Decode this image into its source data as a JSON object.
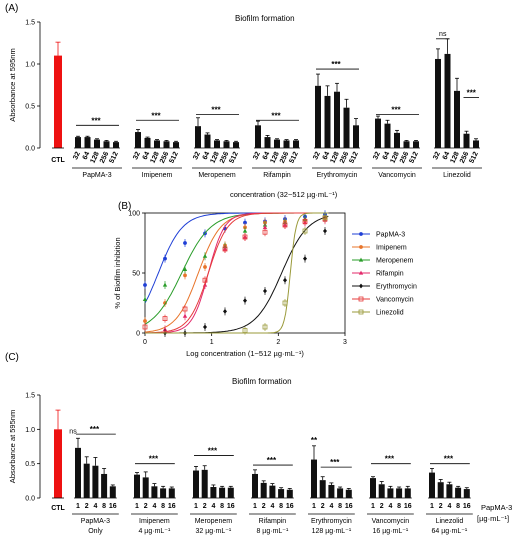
{
  "panels": {
    "a": {
      "label": "(A)",
      "title": "Biofilm formation",
      "xaxis_title": "concentration (32~512 µg·mL⁻¹)"
    },
    "b": {
      "label": "(B)"
    },
    "c": {
      "label": "(C)",
      "title": "Biofilm formation",
      "right_label_1": "PapMA-3",
      "right_label_2": "[µg·mL⁻¹]"
    }
  },
  "colors": {
    "ctl": "#ee1111",
    "bar": "#111111"
  },
  "chart_data": [
    {
      "id": "A",
      "type": "bar",
      "title": "Biofilm formation",
      "ylabel": "Absorbance at 595nm",
      "xlabel": "concentration (32~512 µg·mL⁻¹)",
      "ylim": [
        0,
        1.5
      ],
      "yticks": [
        "0.0",
        "0.5",
        "1.0",
        "1.5"
      ],
      "control": {
        "label": "CTL",
        "value": 1.1,
        "err": 0.16
      },
      "groups": [
        {
          "name": "PapMA-3",
          "ticks": [
            "32",
            "64",
            "128",
            "256",
            "512"
          ],
          "values": [
            0.13,
            0.13,
            0.1,
            0.08,
            0.07
          ],
          "errs": [
            0.01,
            0.01,
            0.01,
            0.01,
            0.01
          ],
          "sig": "***",
          "sig_y": 0.27
        },
        {
          "name": "Imipenem",
          "ticks": [
            "32",
            "64",
            "128",
            "256",
            "512"
          ],
          "values": [
            0.19,
            0.12,
            0.09,
            0.08,
            0.07
          ],
          "errs": [
            0.03,
            0.01,
            0.01,
            0.01,
            0.01
          ],
          "sig": "***",
          "sig_y": 0.33
        },
        {
          "name": "Meropenem",
          "ticks": [
            "32",
            "64",
            "128",
            "256",
            "512"
          ],
          "values": [
            0.26,
            0.16,
            0.09,
            0.08,
            0.07
          ],
          "errs": [
            0.1,
            0.02,
            0.01,
            0.01,
            0.01
          ],
          "sig": "***",
          "sig_y": 0.4
        },
        {
          "name": "Rifampin",
          "ticks": [
            "32",
            "64",
            "128",
            "256",
            "512"
          ],
          "values": [
            0.27,
            0.13,
            0.1,
            0.09,
            0.09
          ],
          "errs": [
            0.05,
            0.02,
            0.01,
            0.01,
            0.01
          ],
          "sig": "***",
          "sig_y": 0.33
        },
        {
          "name": "Erythromycin",
          "ticks": [
            "32",
            "64",
            "128",
            "256",
            "512"
          ],
          "values": [
            0.74,
            0.62,
            0.67,
            0.48,
            0.27
          ],
          "errs": [
            0.14,
            0.12,
            0.1,
            0.1,
            0.08
          ],
          "sig": "***",
          "sig_y": 0.94
        },
        {
          "name": "Vancomycin",
          "ticks": [
            "32",
            "64",
            "128",
            "256",
            "512"
          ],
          "values": [
            0.35,
            0.29,
            0.18,
            0.08,
            0.08
          ],
          "errs": [
            0.03,
            0.04,
            0.03,
            0.01,
            0.01
          ],
          "sig": "***",
          "sig_y": 0.4
        },
        {
          "name": "Linezolid",
          "ticks": [
            "32",
            "64",
            "128",
            "256",
            "512"
          ],
          "values": [
            1.06,
            1.12,
            0.68,
            0.17,
            0.09
          ],
          "errs": [
            0.12,
            0.18,
            0.15,
            0.03,
            0.02
          ],
          "sig": "ns",
          "sig_y": 1.3,
          "sig2": "***",
          "sig2_y": 0.6
        }
      ]
    },
    {
      "id": "B",
      "type": "scatter",
      "ylabel": "% of Biofilm inhibition",
      "xlabel": "Log concentration (1~512 µg·mL⁻¹)",
      "xlim": [
        0,
        3
      ],
      "ylim": [
        0,
        100
      ],
      "xticks": [
        "0",
        "1",
        "2",
        "3"
      ],
      "yticks": [
        "0",
        "50",
        "100"
      ],
      "series": [
        {
          "name": "PapMA-3",
          "color": "#1f3fd6",
          "marker": "circle",
          "x": [
            0,
            0.3,
            0.6,
            0.9,
            1.2,
            1.5,
            1.8,
            2.1,
            2.4,
            2.7
          ],
          "y": [
            40,
            62,
            75,
            83,
            87,
            92,
            93,
            95,
            97,
            99
          ],
          "curve": {
            "ec50": 0.2,
            "hill": 1.2
          }
        },
        {
          "name": "Imipenem",
          "color": "#e8742a",
          "marker": "circle",
          "x": [
            0,
            0.3,
            0.6,
            0.9,
            1.2,
            1.5,
            1.8,
            2.1,
            2.4,
            2.7
          ],
          "y": [
            10,
            25,
            48,
            55,
            73,
            88,
            92,
            93,
            94,
            96
          ],
          "curve": {
            "ec50": 0.8,
            "hill": 1.3
          }
        },
        {
          "name": "Meropenem",
          "color": "#2a9d2a",
          "marker": "triangle",
          "x": [
            0,
            0.3,
            0.6,
            0.9,
            1.2,
            1.5,
            1.8,
            2.1,
            2.4,
            2.7
          ],
          "y": [
            28,
            40,
            53,
            64,
            72,
            85,
            90,
            92,
            95,
            97
          ],
          "curve": {
            "ec50": 0.55,
            "hill": 1.0
          }
        },
        {
          "name": "Rifampin",
          "color": "#e3286a",
          "marker": "triangle",
          "x": [
            0.3,
            0.6,
            0.9,
            1.2,
            1.5,
            1.8,
            2.1,
            2.4,
            2.7
          ],
          "y": [
            3,
            14,
            40,
            70,
            80,
            88,
            90,
            92,
            94
          ],
          "curve": {
            "ec50": 0.95,
            "hill": 1.8
          }
        },
        {
          "name": "Erythromycin",
          "color": "#111111",
          "marker": "diamond",
          "x": [
            0.3,
            0.6,
            0.9,
            1.2,
            1.5,
            1.8,
            2.1,
            2.4,
            2.7
          ],
          "y": [
            0,
            0,
            5,
            18,
            27,
            35,
            44,
            62,
            85
          ],
          "curve": {
            "ec50": 2.05,
            "hill": 1.1
          }
        },
        {
          "name": "Vancomycin",
          "color": "#e63b3b",
          "marker": "square-open",
          "x": [
            0,
            0.3,
            0.6,
            0.9,
            1.2,
            1.5,
            1.8,
            2.1,
            2.4,
            2.7
          ],
          "y": [
            5,
            12,
            20,
            44,
            70,
            80,
            84,
            90,
            93,
            95
          ],
          "curve": {
            "ec50": 0.95,
            "hill": 1.5
          }
        },
        {
          "name": "Linezolid",
          "color": "#9a9a3a",
          "marker": "square-open",
          "x": [
            1.5,
            1.8,
            2.1,
            2.4,
            2.7
          ],
          "y": [
            2,
            5,
            25,
            85,
            96
          ],
          "curve": {
            "ec50": 2.18,
            "hill": 5.0
          }
        }
      ]
    },
    {
      "id": "C",
      "type": "bar",
      "title": "Biofilm formation",
      "ylabel": "Absorbance at 595nm",
      "ylim": [
        0,
        1.5
      ],
      "yticks": [
        "0.0",
        "0.5",
        "1.0",
        "1.5"
      ],
      "control": {
        "label": "CTL",
        "value": 1.0,
        "err": 0.28,
        "sig": "ns"
      },
      "groups": [
        {
          "name": "PapMA-3",
          "name2": "Only",
          "ticks": [
            "1",
            "2",
            "4",
            "8",
            "16"
          ],
          "values": [
            0.73,
            0.5,
            0.47,
            0.35,
            0.17
          ],
          "errs": [
            0.14,
            0.1,
            0.12,
            0.08,
            0.02
          ],
          "sig": "***",
          "sig_y": 0.93
        },
        {
          "name": "Imipenem",
          "name2": "4 µg·mL⁻¹",
          "ticks": [
            "1",
            "2",
            "4",
            "8",
            "16"
          ],
          "values": [
            0.34,
            0.3,
            0.17,
            0.14,
            0.14
          ],
          "errs": [
            0.03,
            0.08,
            0.04,
            0.03,
            0.02
          ],
          "sig": "***",
          "sig_y": 0.5
        },
        {
          "name": "Meropenem",
          "name2": "32 µg·mL⁻¹",
          "ticks": [
            "1",
            "2",
            "4",
            "8",
            "16"
          ],
          "values": [
            0.4,
            0.41,
            0.16,
            0.15,
            0.15
          ],
          "errs": [
            0.06,
            0.06,
            0.03,
            0.02,
            0.02
          ],
          "sig": "***",
          "sig_y": 0.62
        },
        {
          "name": "Rifampin",
          "name2": "8 µg·mL⁻¹",
          "ticks": [
            "1",
            "2",
            "4",
            "8",
            "16"
          ],
          "values": [
            0.35,
            0.22,
            0.18,
            0.13,
            0.12
          ],
          "errs": [
            0.06,
            0.03,
            0.03,
            0.02,
            0.02
          ],
          "sig": "***",
          "sig_y": 0.48
        },
        {
          "name": "Erythromycin",
          "name2": "128 µg·mL⁻¹",
          "ticks": [
            "1",
            "2",
            "4",
            "8",
            "16"
          ],
          "values": [
            0.56,
            0.26,
            0.19,
            0.14,
            0.12
          ],
          "errs": [
            0.2,
            0.05,
            0.03,
            0.02,
            0.02
          ],
          "sig": "***",
          "sig_y": 0.45,
          "first_sig": "**"
        },
        {
          "name": "Vancomycin",
          "name2": "16 µg·mL⁻¹",
          "ticks": [
            "1",
            "2",
            "4",
            "8",
            "16"
          ],
          "values": [
            0.29,
            0.2,
            0.14,
            0.14,
            0.14
          ],
          "errs": [
            0.02,
            0.04,
            0.03,
            0.02,
            0.03
          ],
          "sig": "***",
          "sig_y": 0.5
        },
        {
          "name": "Linezolid",
          "name2": "64 µg·mL⁻¹",
          "ticks": [
            "1",
            "2",
            "4",
            "8",
            "16"
          ],
          "values": [
            0.37,
            0.23,
            0.2,
            0.15,
            0.13
          ],
          "errs": [
            0.06,
            0.04,
            0.03,
            0.02,
            0.02
          ],
          "sig": "***",
          "sig_y": 0.5
        }
      ]
    }
  ]
}
